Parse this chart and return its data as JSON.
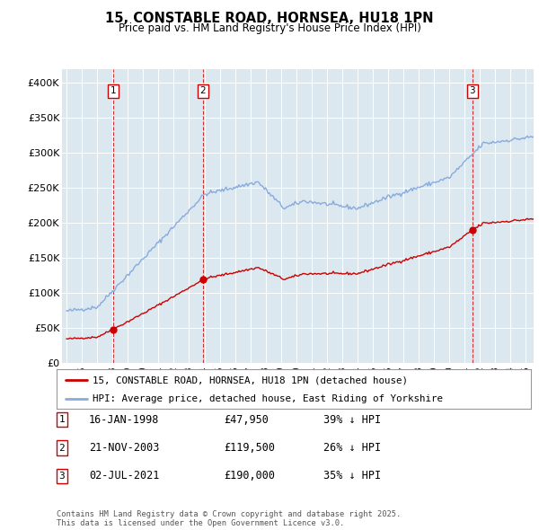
{
  "title": "15, CONSTABLE ROAD, HORNSEA, HU18 1PN",
  "subtitle": "Price paid vs. HM Land Registry's House Price Index (HPI)",
  "legend_line1": "15, CONSTABLE ROAD, HORNSEA, HU18 1PN (detached house)",
  "legend_line2": "HPI: Average price, detached house, East Riding of Yorkshire",
  "sale_color": "#cc0000",
  "hpi_color": "#88aadd",
  "vline_color": "#cc0000",
  "xlim_start": 1994.7,
  "xlim_end": 2025.5,
  "ylim_min": 0,
  "ylim_max": 420000,
  "yticks": [
    0,
    50000,
    100000,
    150000,
    200000,
    250000,
    300000,
    350000,
    400000
  ],
  "ytick_labels": [
    "£0",
    "£50K",
    "£100K",
    "£150K",
    "£200K",
    "£250K",
    "£300K",
    "£350K",
    "£400K"
  ],
  "sales": [
    {
      "date_num": 1998.04,
      "price": 47950,
      "label": "1"
    },
    {
      "date_num": 2003.89,
      "price": 119500,
      "label": "2"
    },
    {
      "date_num": 2021.5,
      "price": 190000,
      "label": "3"
    }
  ],
  "table_rows": [
    {
      "num": "1",
      "date": "16-JAN-1998",
      "price": "£47,950",
      "note": "39% ↓ HPI"
    },
    {
      "num": "2",
      "date": "21-NOV-2003",
      "price": "£119,500",
      "note": "26% ↓ HPI"
    },
    {
      "num": "3",
      "date": "02-JUL-2021",
      "price": "£190,000",
      "note": "35% ↓ HPI"
    }
  ],
  "footer": "Contains HM Land Registry data © Crown copyright and database right 2025.\nThis data is licensed under the Open Government Licence v3.0.",
  "background_color": "#ffffff",
  "plot_bg_color": "#dce8f0"
}
